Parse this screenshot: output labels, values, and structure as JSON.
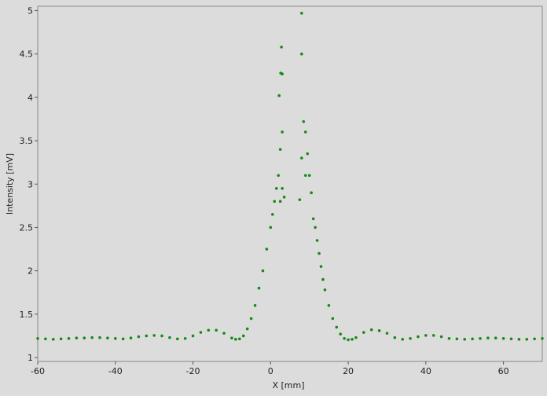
{
  "chart_data": {
    "type": "scatter",
    "x_label": "X [mm]",
    "y_label": "Intensity [mV]",
    "xlim": [
      -60,
      70
    ],
    "ylim": [
      0.955,
      5.05
    ],
    "xticks": [
      -60,
      -40,
      -20,
      0,
      20,
      40,
      60
    ],
    "yticks": [
      1,
      1.5,
      2,
      2.5,
      3,
      3.5,
      4,
      4.5,
      5
    ],
    "grid": false,
    "series": [
      {
        "color": "#168a16",
        "x": [
          -60,
          -58,
          -56,
          -54,
          -52,
          -50,
          -48,
          -46,
          -44,
          -42,
          -40,
          -38,
          -36,
          -34,
          -32,
          -30,
          -28,
          -26,
          -24,
          -22,
          -20,
          -18,
          -16,
          -14,
          -12,
          -10,
          -9,
          -8,
          -7,
          -6,
          -5,
          -4,
          -3,
          -2,
          -1,
          0,
          0.5,
          1,
          1.5,
          2,
          2.5,
          3,
          2.2,
          2.6,
          3,
          2.8,
          3.5,
          2.5,
          3,
          8,
          8,
          8.5,
          9,
          9.5,
          10,
          10.5,
          8,
          9,
          7.5,
          11,
          11.5,
          12,
          12.5,
          13,
          13.5,
          14,
          15,
          16,
          17,
          18,
          19,
          20,
          21,
          22,
          24,
          26,
          28,
          30,
          32,
          34,
          36,
          38,
          40,
          42,
          44,
          46,
          48,
          50,
          52,
          54,
          56,
          58,
          60,
          62,
          64,
          66,
          68,
          70
        ],
        "values": [
          1.22,
          1.215,
          1.21,
          1.215,
          1.22,
          1.225,
          1.225,
          1.23,
          1.23,
          1.225,
          1.22,
          1.215,
          1.225,
          1.24,
          1.25,
          1.255,
          1.25,
          1.23,
          1.215,
          1.22,
          1.25,
          1.29,
          1.315,
          1.315,
          1.28,
          1.225,
          1.21,
          1.215,
          1.25,
          1.33,
          1.45,
          1.6,
          1.8,
          2.0,
          2.25,
          2.5,
          2.65,
          2.8,
          2.95,
          3.1,
          3.4,
          3.6,
          4.02,
          4.28,
          4.27,
          4.58,
          2.85,
          2.8,
          2.95,
          4.97,
          4.5,
          3.72,
          3.6,
          3.35,
          3.1,
          2.9,
          3.3,
          3.1,
          2.82,
          2.6,
          2.5,
          2.35,
          2.2,
          2.05,
          1.9,
          1.78,
          1.6,
          1.45,
          1.35,
          1.27,
          1.22,
          1.205,
          1.21,
          1.23,
          1.29,
          1.32,
          1.31,
          1.28,
          1.23,
          1.21,
          1.22,
          1.24,
          1.255,
          1.255,
          1.24,
          1.22,
          1.215,
          1.21,
          1.215,
          1.22,
          1.225,
          1.225,
          1.22,
          1.215,
          1.21,
          1.21,
          1.215,
          1.22
        ]
      }
    ]
  }
}
